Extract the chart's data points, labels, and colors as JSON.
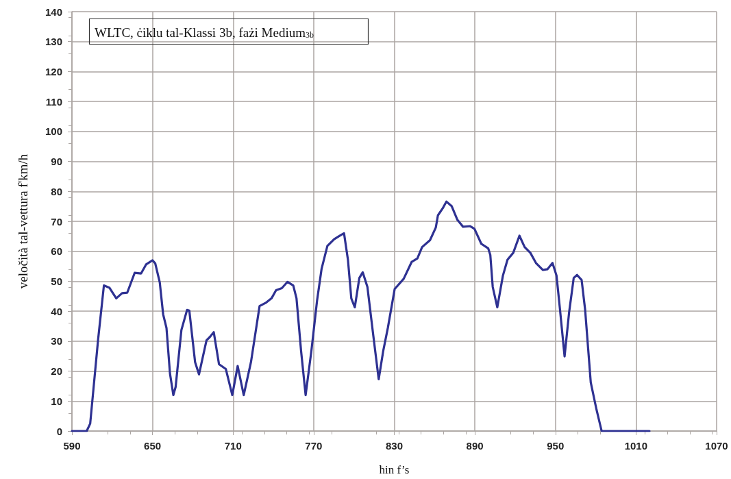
{
  "chart_data": {
    "type": "line",
    "title": "WLTC, ċiklu tal-Klassi 3b, fażi Medium$_{3b}$",
    "xlabel": "ħin f’s",
    "ylabel": "veločità tal-vettura f'km/h",
    "xlim": [
      590,
      1070
    ],
    "xticks": [
      590,
      650,
      710,
      770,
      830,
      890,
      950,
      1010,
      1070
    ],
    "ylim": [
      0,
      140
    ],
    "yticks": [
      0,
      10,
      20,
      30,
      40,
      50,
      60,
      70,
      80,
      90,
      100,
      110,
      120,
      130,
      140
    ],
    "grid": true,
    "marker": "none",
    "line_style": "solid",
    "series": [
      {
        "color": "#2e3192",
        "x": [
          590,
          601,
          603.6,
          609.5,
          613.8,
          618,
          623,
          627.3,
          631.2,
          636.7,
          641.5,
          645.2,
          650,
          652,
          655.4,
          657.9,
          660.4,
          663,
          665.5,
          667.2,
          671.5,
          675.7,
          677.4,
          681.7,
          684.6,
          690.2,
          692.7,
          695.6,
          699.5,
          704.6,
          709.4,
          713.4,
          717.9,
          723.3,
          729.7,
          734.3,
          738.6,
          742,
          746.3,
          750.5,
          754.8,
          757.2,
          760.6,
          764,
          768.3,
          772.5,
          775.9,
          780.2,
          785.2,
          789.5,
          792.6,
          795.5,
          798,
          800.6,
          804,
          806.5,
          810,
          814.1,
          818.4,
          821.8,
          825.2,
          830.3,
          837,
          843,
          847.2,
          850.7,
          856.6,
          860.9,
          862.5,
          866,
          868.8,
          872.7,
          877,
          881.2,
          886.3,
          889.7,
          894.8,
          899.9,
          901.5,
          903.3,
          906.7,
          910.9,
          914.3,
          918.6,
          923.2,
          927.1,
          931.3,
          935.5,
          940.6,
          944,
          947.8,
          950.8,
          953.4,
          956.8,
          960.2,
          963.6,
          966.1,
          969.5,
          972.1,
          976.3,
          980.6,
          984.4,
          1020
        ],
        "values": [
          0,
          0,
          2.5,
          30.6,
          48.6,
          47.8,
          44.3,
          46,
          46.2,
          52.8,
          52.6,
          55.6,
          57,
          56,
          49.6,
          39,
          34.4,
          19.2,
          12,
          14.7,
          33.7,
          40.4,
          40.2,
          23,
          18.9,
          30.3,
          31.4,
          33,
          22.3,
          20.7,
          12,
          21.7,
          12,
          23,
          41.7,
          42.8,
          44.3,
          47,
          47.7,
          49.8,
          48.6,
          44.3,
          26.8,
          12,
          26.8,
          43.5,
          54.2,
          61.8,
          64,
          65.2,
          66,
          57.2,
          44.3,
          41.3,
          51.1,
          53,
          48.1,
          32.9,
          17.3,
          26.8,
          34.4,
          47.4,
          50.8,
          56.5,
          57.6,
          61.4,
          63.7,
          67.9,
          72,
          74.3,
          76.6,
          75.1,
          70.5,
          68.2,
          68.4,
          67.5,
          62.5,
          61,
          58.8,
          48.1,
          41.3,
          51.9,
          57.2,
          59.5,
          65.2,
          61.4,
          59.5,
          56.1,
          53.8,
          54,
          56.1,
          51.9,
          40.5,
          24.9,
          39.7,
          51.1,
          52.1,
          50.4,
          40.5,
          16.2,
          7.1,
          0,
          0
        ]
      }
    ]
  }
}
